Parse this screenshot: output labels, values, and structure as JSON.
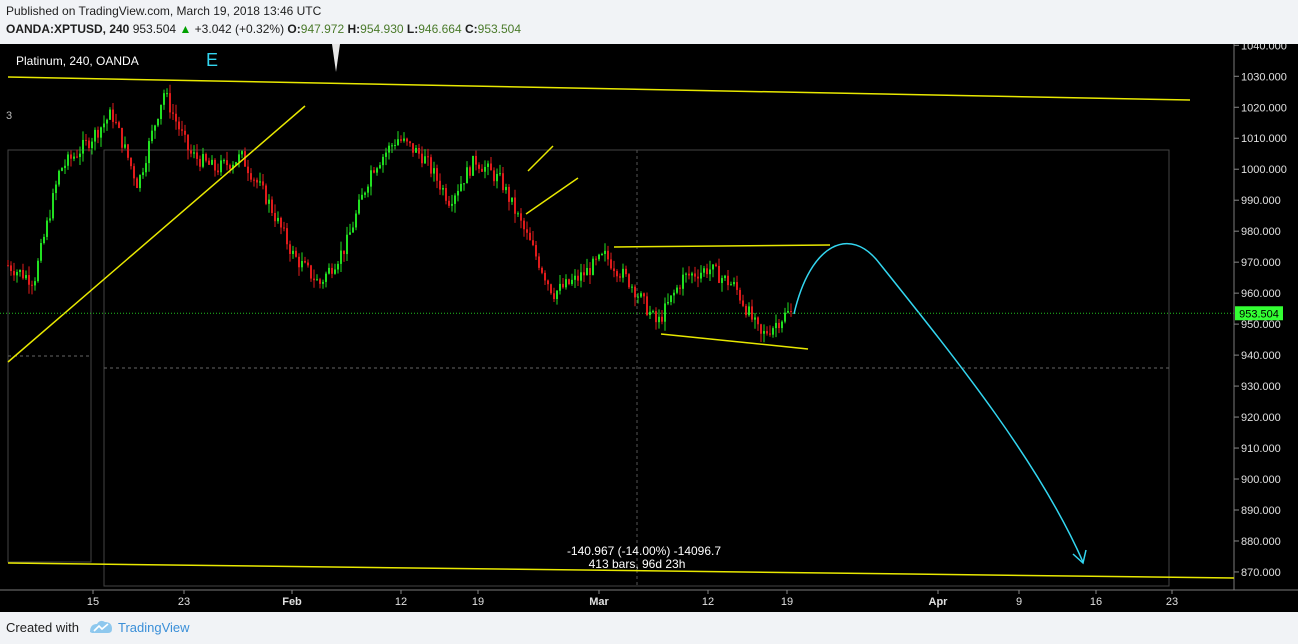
{
  "header": {
    "published": "Published on TradingView.com, March 19, 2018 13:46 UTC",
    "symbol": "OANDA:XPTUSD, 240",
    "last": "953.504",
    "change": "+3.042 (+0.32%)",
    "o_label": "O:",
    "o_val": "947.972",
    "h_label": "H:",
    "h_val": "954.930",
    "l_label": "L:",
    "l_val": "946.664",
    "c_label": "C:",
    "c_val": "953.504"
  },
  "footer": {
    "created": "Created with",
    "brand": "TradingView"
  },
  "colors": {
    "background": "#000000",
    "up": "#21e021",
    "down": "#e01b1b",
    "trendline": "#f0f000",
    "projection": "#33d6f0",
    "price_tag": "#33ff33"
  },
  "chart_data": {
    "type": "candlestick",
    "title": "Platinum, 240, OANDA",
    "wave_label": "E",
    "current_price": 953.504,
    "current_price_label": "953.504",
    "ylim": [
      865,
      1042
    ],
    "yticks": [
      870,
      880,
      890,
      900,
      910,
      920,
      930,
      940,
      950,
      960,
      970,
      980,
      990,
      1000,
      1010,
      1020,
      1030,
      1040
    ],
    "ytick_labels": [
      "870.000",
      "880.000",
      "890.000",
      "900.000",
      "910.000",
      "920.000",
      "930.000",
      "940.000",
      "950.000",
      "960.000",
      "970.000",
      "980.000",
      "990.000",
      "1000.000",
      "1010.000",
      "1020.000",
      "1030.000",
      "1040.000"
    ],
    "xtick_labels": [
      "15",
      "23",
      "Feb",
      "12",
      "19",
      "Mar",
      "12",
      "19",
      "Apr",
      "9",
      "16",
      "23"
    ],
    "price_path": [
      {
        "x": "Jan 12",
        "y": 969
      },
      {
        "x": "Jan 15",
        "y": 964
      },
      {
        "x": "Jan 17",
        "y": 1000
      },
      {
        "x": "Jan 19",
        "y": 1008
      },
      {
        "x": "Jan 21",
        "y": 1018
      },
      {
        "x": "Jan 23",
        "y": 995
      },
      {
        "x": "Jan 25",
        "y": 1025
      },
      {
        "x": "Jan 28",
        "y": 1005
      },
      {
        "x": "Jan 31",
        "y": 1000
      },
      {
        "x": "Feb 2",
        "y": 1004
      },
      {
        "x": "Feb 6",
        "y": 990
      },
      {
        "x": "Feb 9",
        "y": 972
      },
      {
        "x": "Feb 12",
        "y": 963
      },
      {
        "x": "Feb 14",
        "y": 975
      },
      {
        "x": "Feb 16",
        "y": 1000
      },
      {
        "x": "Feb 18",
        "y": 1010
      },
      {
        "x": "Feb 20",
        "y": 1004
      },
      {
        "x": "Feb 22",
        "y": 990
      },
      {
        "x": "Feb 24",
        "y": 1003
      },
      {
        "x": "Feb 26",
        "y": 996
      },
      {
        "x": "Feb 28",
        "y": 978
      },
      {
        "x": "Mar 1",
        "y": 960
      },
      {
        "x": "Mar 3",
        "y": 965
      },
      {
        "x": "Mar 5",
        "y": 972
      },
      {
        "x": "Mar 7",
        "y": 963
      },
      {
        "x": "Mar 9",
        "y": 950
      },
      {
        "x": "Mar 11",
        "y": 965
      },
      {
        "x": "Mar 13",
        "y": 968
      },
      {
        "x": "Mar 15",
        "y": 962
      },
      {
        "x": "Mar 17",
        "y": 946
      },
      {
        "x": "Mar 19",
        "y": 953.5
      }
    ],
    "measurement": {
      "line1": "-140.967 (-14.00%) -14096.7",
      "line2": "413 bars, 96d 23h"
    }
  }
}
